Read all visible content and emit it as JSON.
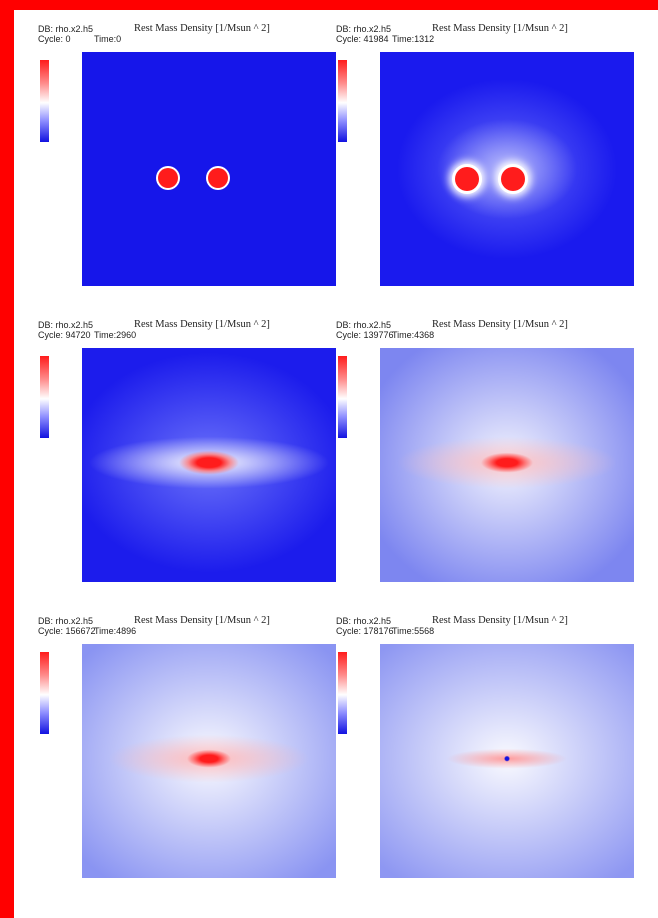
{
  "panels": [
    {
      "db": "DB: rho.x2.h5",
      "title": "Rest Mass Density [1/Msun ^ 2]",
      "cycle": "Cycle: 0",
      "time": "Time:0"
    },
    {
      "db": "DB: rho.x2.h5",
      "title": "Rest Mass Density [1/Msun ^ 2]",
      "cycle": "Cycle: 41984",
      "time": "Time:1312"
    },
    {
      "db": "DB: rho.x2.h5",
      "title": "Rest Mass Density [1/Msun ^ 2]",
      "cycle": "Cycle: 94720",
      "time": "Time:2960"
    },
    {
      "db": "DB: rho.x2.h5",
      "title": "Rest Mass Density [1/Msun ^ 2]",
      "cycle": "Cycle: 139776",
      "time": "Time:4368"
    },
    {
      "db": "DB: rho.x2.h5",
      "title": "Rest Mass Density [1/Msun ^ 2]",
      "cycle": "Cycle: 156672",
      "time": "Time:4896"
    },
    {
      "db": "DB: rho.x2.h5",
      "title": "Rest Mass Density [1/Msun ^ 2]",
      "cycle": "Cycle: 178176",
      "time": "Time:5568"
    }
  ],
  "colors": {
    "frame": "#ff0000",
    "high": "#ff1c1c",
    "mid": "#ffffff",
    "low": "#1212e0"
  }
}
